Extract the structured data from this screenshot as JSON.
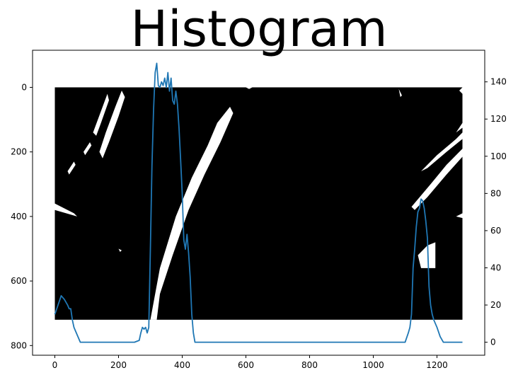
{
  "chart_data": {
    "type": "line",
    "title": "Histogram",
    "xlabel": "",
    "ylabel": "",
    "xlim": [
      -70,
      1350
    ],
    "left_ylim": [
      830,
      -115
    ],
    "right_ylim": [
      -7,
      157
    ],
    "x_ticks": [
      0,
      200,
      400,
      600,
      800,
      1000,
      1200
    ],
    "left_y_ticks": [
      0,
      200,
      400,
      600,
      800
    ],
    "right_y_ticks": [
      0,
      20,
      40,
      60,
      80,
      100,
      120,
      140
    ],
    "grid": false,
    "background_image": {
      "description": "binary warped lane image (1280x720) drawn on left axis",
      "x_range": [
        0,
        1280
      ],
      "y_range": [
        0,
        720
      ],
      "fill": "#000000",
      "marks": "#ffffff"
    },
    "series": [
      {
        "color": "#1f77b4",
        "axis": "right",
        "x": [
          0,
          10,
          20,
          30,
          40,
          45,
          50,
          55,
          60,
          65,
          70,
          75,
          80,
          100,
          150,
          200,
          250,
          265,
          270,
          275,
          280,
          285,
          290,
          295,
          300,
          305,
          310,
          315,
          320,
          325,
          330,
          335,
          340,
          345,
          350,
          355,
          360,
          365,
          370,
          375,
          380,
          385,
          390,
          395,
          400,
          405,
          410,
          415,
          420,
          425,
          430,
          435,
          440,
          445,
          450,
          460,
          470,
          480,
          500,
          600,
          700,
          800,
          900,
          1000,
          1100,
          1110,
          1115,
          1120,
          1125,
          1130,
          1135,
          1140,
          1145,
          1150,
          1155,
          1160,
          1165,
          1170,
          1175,
          1180,
          1185,
          1190,
          1195,
          1200,
          1210,
          1220,
          1230,
          1280
        ],
        "y": [
          15,
          20,
          25,
          23,
          20,
          18,
          18,
          12,
          8,
          6,
          4,
          2,
          0,
          0,
          0,
          0,
          0,
          1,
          5,
          8,
          7,
          8,
          5,
          8,
          50,
          95,
          125,
          145,
          150,
          138,
          137,
          140,
          138,
          142,
          137,
          145,
          135,
          142,
          130,
          128,
          135,
          128,
          115,
          98,
          80,
          55,
          50,
          58,
          48,
          35,
          15,
          5,
          0,
          0,
          0,
          0,
          0,
          0,
          0,
          0,
          0,
          0,
          0,
          0,
          0,
          5,
          8,
          15,
          40,
          50,
          62,
          70,
          72,
          77,
          76,
          72,
          65,
          56,
          30,
          20,
          15,
          12,
          10,
          8,
          3,
          0,
          0,
          0
        ]
      }
    ]
  }
}
